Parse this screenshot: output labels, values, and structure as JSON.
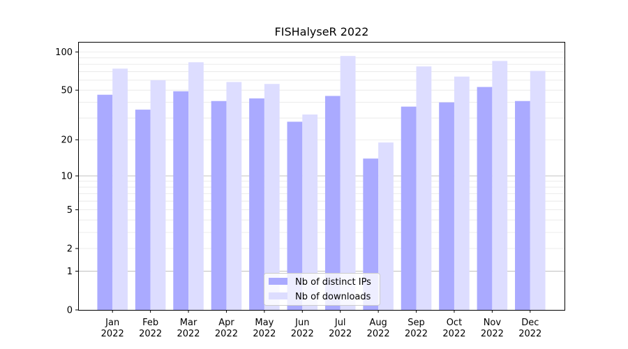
{
  "chart_data": {
    "type": "bar",
    "title": "FISHalyseR 2022",
    "xlabel": "",
    "ylabel": "",
    "y_scale": "log(1+y)",
    "ylim": [
      0,
      120
    ],
    "yticks": [
      0,
      1,
      2,
      5,
      10,
      20,
      50,
      100
    ],
    "ytick_labels": [
      "0",
      "1",
      "2",
      "5",
      "10",
      "20",
      "50",
      "100"
    ],
    "grid": true,
    "legend_position": "bottom-center",
    "categories": [
      "Jan\n2022",
      "Feb\n2022",
      "Mar\n2022",
      "Apr\n2022",
      "May\n2022",
      "Jun\n2022",
      "Jul\n2022",
      "Aug\n2022",
      "Sep\n2022",
      "Oct\n2022",
      "Nov\n2022",
      "Dec\n2022"
    ],
    "category_lines": [
      [
        "Jan",
        "2022"
      ],
      [
        "Feb",
        "2022"
      ],
      [
        "Mar",
        "2022"
      ],
      [
        "Apr",
        "2022"
      ],
      [
        "May",
        "2022"
      ],
      [
        "Jun",
        "2022"
      ],
      [
        "Jul",
        "2022"
      ],
      [
        "Aug",
        "2022"
      ],
      [
        "Sep",
        "2022"
      ],
      [
        "Oct",
        "2022"
      ],
      [
        "Nov",
        "2022"
      ],
      [
        "Dec",
        "2022"
      ]
    ],
    "series": [
      {
        "name": "Nb of distinct IPs",
        "color": "#aaaaff",
        "values": [
          46,
          35,
          49,
          41,
          43,
          28,
          45,
          14,
          37,
          40,
          53,
          41
        ]
      },
      {
        "name": "Nb of downloads",
        "color": "#ddddff",
        "values": [
          74,
          60,
          83,
          58,
          56,
          32,
          93,
          19,
          77,
          64,
          85,
          71
        ]
      }
    ]
  }
}
